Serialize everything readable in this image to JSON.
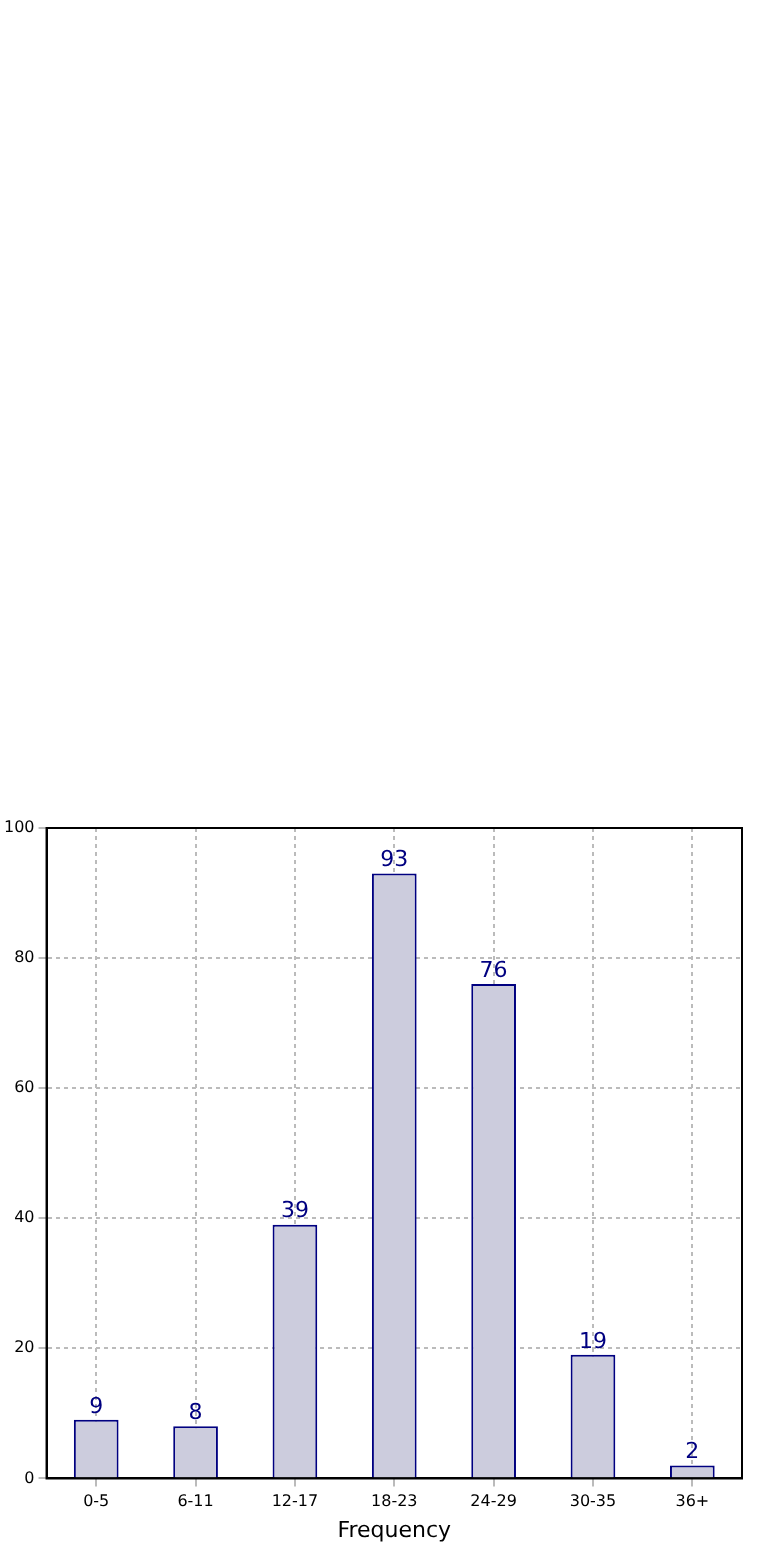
{
  "chart_data": {
    "type": "bar",
    "xlabel": "Frequency",
    "categories": [
      "0-5",
      "6-11",
      "12-17",
      "18-23",
      "24-29",
      "30-35",
      "36+"
    ],
    "values": [
      9,
      8,
      39,
      93,
      76,
      19,
      2
    ],
    "color": "#ccccdd",
    "ylim": [
      0,
      100
    ],
    "yticks": [
      0,
      20,
      40,
      60,
      80,
      100
    ],
    "grid": true,
    "data_labels": true,
    "legend": false
  }
}
